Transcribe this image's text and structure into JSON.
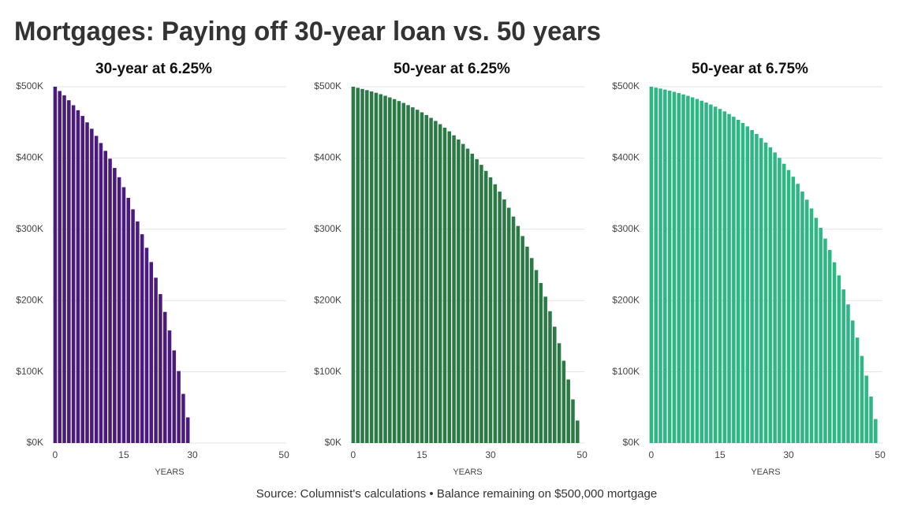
{
  "title": "Mortgages: Paying off 30-year loan vs. 50 years",
  "source": "Source: Columnist's calculations • Balance remaining on $500,000 mortgage",
  "chart_data": [
    {
      "type": "bar",
      "title": "30-year at 6.25%",
      "x_label": "YEARS",
      "color": "#4a1a7c",
      "x": [
        0,
        1,
        2,
        3,
        4,
        5,
        6,
        7,
        8,
        9,
        10,
        11,
        12,
        13,
        14,
        15,
        16,
        17,
        18,
        19,
        20,
        21,
        22,
        23,
        24,
        25,
        26,
        27,
        28,
        29
      ],
      "values": [
        500,
        494,
        488,
        481,
        474,
        467,
        459,
        450,
        441,
        431,
        421,
        410,
        399,
        386,
        373,
        359,
        344,
        328,
        311,
        293,
        274,
        254,
        232,
        209,
        184,
        158,
        130,
        101,
        69,
        36
      ],
      "xlim": [
        -0.5,
        50.5
      ],
      "xticks": [
        0,
        15,
        30,
        50
      ],
      "ylim": [
        0,
        500
      ],
      "yticks": [
        {
          "value": 0,
          "label": "$0K"
        },
        {
          "value": 100,
          "label": "$100K"
        },
        {
          "value": 200,
          "label": "$200K"
        },
        {
          "value": 300,
          "label": "$300K"
        },
        {
          "value": 400,
          "label": "$400K"
        },
        {
          "value": 500,
          "label": "$500K"
        }
      ],
      "grid": true
    },
    {
      "type": "bar",
      "title": "50-year at 6.25%",
      "x_label": "YEARS",
      "color": "#2b7a45",
      "x": [
        0,
        1,
        2,
        3,
        4,
        5,
        6,
        7,
        8,
        9,
        10,
        11,
        12,
        13,
        14,
        15,
        16,
        17,
        18,
        19,
        20,
        21,
        22,
        23,
        24,
        25,
        26,
        27,
        28,
        29,
        30,
        31,
        32,
        33,
        34,
        35,
        36,
        37,
        38,
        39,
        40,
        41,
        42,
        43,
        44,
        45,
        46,
        47,
        48,
        49
      ],
      "values": [
        500,
        498.5,
        496.9,
        495.2,
        493.4,
        491.5,
        489.5,
        487.3,
        485,
        482.6,
        479.9,
        477.2,
        474.2,
        471.1,
        467.7,
        464.1,
        460.3,
        456.3,
        452,
        447.4,
        442.5,
        437.4,
        431.8,
        426,
        419.7,
        413.1,
        406,
        398.4,
        390.4,
        381.9,
        372.8,
        363.1,
        352.8,
        341.9,
        330.2,
        317.8,
        304.6,
        290.5,
        275.6,
        259.6,
        242.7,
        224.6,
        205.4,
        185,
        163.3,
        140.1,
        115.5,
        89.2,
        61.3,
        31.6
      ],
      "xlim": [
        -0.5,
        50.5
      ],
      "xticks": [
        0,
        15,
        30,
        50
      ],
      "ylim": [
        0,
        500
      ],
      "yticks": [
        {
          "value": 0,
          "label": "$0K"
        },
        {
          "value": 100,
          "label": "$100K"
        },
        {
          "value": 200,
          "label": "$200K"
        },
        {
          "value": 300,
          "label": "$300K"
        },
        {
          "value": 400,
          "label": "$400K"
        },
        {
          "value": 500,
          "label": "$500K"
        }
      ],
      "grid": true
    },
    {
      "type": "bar",
      "title": "50-year at 6.75%",
      "x_label": "YEARS",
      "color": "#2db784",
      "x": [
        0,
        1,
        2,
        3,
        4,
        5,
        6,
        7,
        8,
        9,
        10,
        11,
        12,
        13,
        14,
        15,
        16,
        17,
        18,
        19,
        20,
        21,
        22,
        23,
        24,
        25,
        26,
        27,
        28,
        29,
        30,
        31,
        32,
        33,
        34,
        35,
        36,
        37,
        38,
        39,
        40,
        41,
        42,
        43,
        44,
        45,
        46,
        47,
        48,
        49
      ],
      "values": [
        500,
        498.7,
        497.4,
        496,
        494.5,
        492.8,
        491.1,
        489.2,
        487.2,
        485.1,
        482.8,
        480.4,
        477.8,
        475,
        472,
        468.8,
        465.4,
        461.7,
        457.8,
        453.6,
        449.1,
        444.3,
        439.2,
        433.7,
        427.9,
        421.6,
        414.9,
        407.8,
        400.1,
        391.9,
        383.1,
        373.7,
        363.7,
        352.9,
        341.5,
        329.2,
        316,
        302,
        286.9,
        270.9,
        253.7,
        235.3,
        215.6,
        194.5,
        172,
        148,
        122.2,
        94.6,
        65.2,
        33.7
      ],
      "xlim": [
        -0.5,
        50.5
      ],
      "xticks": [
        0,
        15,
        30,
        50
      ],
      "ylim": [
        0,
        500
      ],
      "yticks": [
        {
          "value": 0,
          "label": "$0K"
        },
        {
          "value": 100,
          "label": "$100K"
        },
        {
          "value": 200,
          "label": "$200K"
        },
        {
          "value": 300,
          "label": "$300K"
        },
        {
          "value": 400,
          "label": "$400K"
        },
        {
          "value": 500,
          "label": "$500K"
        }
      ],
      "grid": true
    }
  ]
}
